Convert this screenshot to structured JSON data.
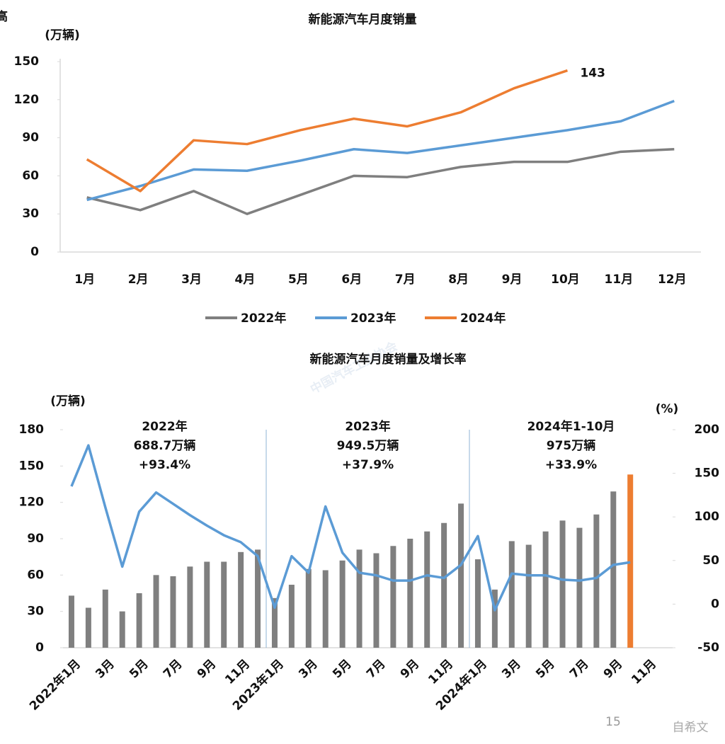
{
  "page": {
    "fragment": "高",
    "page_number": "15",
    "watermark": "自希文",
    "background_watermark": "中国汽车工业协会"
  },
  "chart_data": [
    {
      "type": "line",
      "title": "新能源汽车月度销量",
      "y_unit_label": "(万辆)",
      "categories": [
        "1月",
        "2月",
        "3月",
        "4月",
        "5月",
        "6月",
        "7月",
        "8月",
        "9月",
        "10月",
        "11月",
        "12月"
      ],
      "series": [
        {
          "name": "2022年",
          "color": "#7f7f7f",
          "values": [
            43,
            33,
            48,
            30,
            45,
            60,
            59,
            67,
            71,
            71,
            79,
            81
          ]
        },
        {
          "name": "2023年",
          "color": "#5b9bd5",
          "values": [
            41,
            52,
            65,
            64,
            72,
            81,
            78,
            84,
            90,
            96,
            103,
            119
          ]
        },
        {
          "name": "2024年",
          "color": "#ed7d31",
          "values": [
            73,
            48,
            88,
            85,
            96,
            105,
            99,
            110,
            129,
            143,
            null,
            null
          ]
        }
      ],
      "labeled_point": {
        "series": 2,
        "index": 9
      },
      "ylim": [
        0,
        150
      ],
      "yticks": [
        0,
        30,
        60,
        90,
        120,
        150
      ],
      "grid": false,
      "legend": "bottom"
    },
    {
      "type": "bar_line",
      "title": "新能源汽车月度销量及增长率",
      "y_unit_label": "(万辆)",
      "y2_unit_label": "(%)",
      "categories": [
        "2022年1月",
        null,
        "3月",
        null,
        "5月",
        null,
        "7月",
        null,
        "9月",
        null,
        "11月",
        null,
        "2023年1月",
        null,
        "3月",
        null,
        "5月",
        null,
        "7月",
        null,
        "9月",
        null,
        "11月",
        null,
        "2024年1月",
        null,
        "3月",
        null,
        "5月",
        null,
        "7月",
        null,
        "9月",
        null,
        "11月",
        null
      ],
      "series": [
        {
          "type": "bar",
          "axis": "y",
          "colors": [
            "#7f7f7f",
            "#7f7f7f",
            "#7f7f7f",
            "#7f7f7f",
            "#7f7f7f",
            "#7f7f7f",
            "#7f7f7f",
            "#7f7f7f",
            "#7f7f7f",
            "#7f7f7f",
            "#7f7f7f",
            "#7f7f7f",
            "#7f7f7f",
            "#7f7f7f",
            "#7f7f7f",
            "#7f7f7f",
            "#7f7f7f",
            "#7f7f7f",
            "#7f7f7f",
            "#7f7f7f",
            "#7f7f7f",
            "#7f7f7f",
            "#7f7f7f",
            "#7f7f7f",
            "#7f7f7f",
            "#7f7f7f",
            "#7f7f7f",
            "#7f7f7f",
            "#7f7f7f",
            "#7f7f7f",
            "#7f7f7f",
            "#7f7f7f",
            "#7f7f7f",
            "#ed7d31",
            "#7f7f7f",
            "#7f7f7f"
          ],
          "values": [
            43,
            33,
            48,
            30,
            45,
            60,
            59,
            67,
            71,
            71,
            79,
            81,
            41,
            52,
            65,
            64,
            72,
            81,
            78,
            84,
            90,
            96,
            103,
            119,
            73,
            48,
            88,
            85,
            96,
            105,
            99,
            110,
            129,
            143,
            null,
            null
          ]
        },
        {
          "type": "line",
          "axis": "y2",
          "color": "#5b9bd5",
          "values": [
            135,
            182,
            111,
            43,
            106,
            128,
            115,
            102,
            90,
            79,
            71,
            55,
            -4,
            55,
            36,
            112,
            59,
            36,
            33,
            27,
            27,
            33,
            30,
            45,
            78,
            -7,
            35,
            33,
            33,
            28,
            27,
            30,
            45,
            48,
            null,
            null
          ]
        }
      ],
      "annotations": [
        [
          "2022年",
          "688.7万辆",
          "+93.4%"
        ],
        [
          "2023年",
          "949.5万辆",
          "+37.9%"
        ],
        [
          "2024年1-10月",
          "975万辆",
          "+33.9%"
        ]
      ],
      "ylim": [
        0,
        180
      ],
      "yticks": [
        0,
        30,
        60,
        90,
        120,
        150,
        180
      ],
      "y2lim": [
        -50,
        200
      ],
      "y2ticks": [
        -50,
        0,
        50,
        100,
        150,
        200
      ]
    }
  ]
}
